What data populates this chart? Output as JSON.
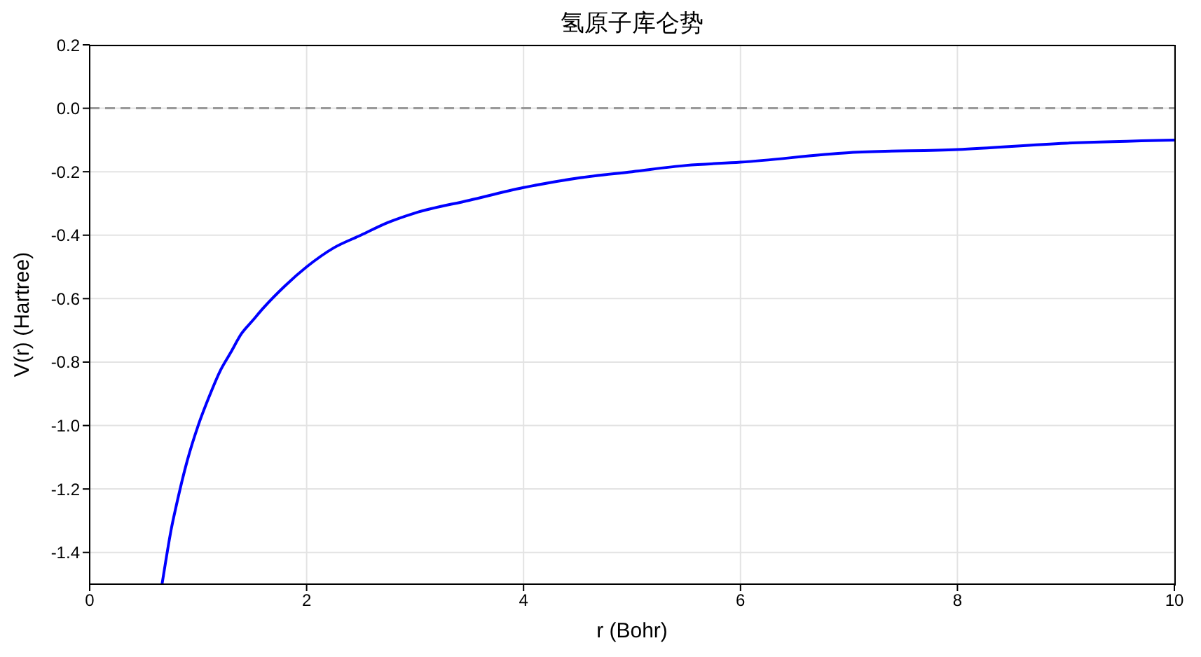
{
  "chart_data": {
    "type": "line",
    "title": "氢原子库仑势",
    "xlabel": "r (Bohr)",
    "ylabel": "V(r) (Hartree)",
    "x": [
      0.667,
      0.7,
      0.75,
      0.8,
      0.9,
      1.0,
      1.1,
      1.2,
      1.3,
      1.4,
      1.5,
      1.6,
      1.8,
      2.0,
      2.25,
      2.5,
      2.75,
      3.0,
      3.5,
      4.0,
      4.5,
      5.0,
      5.5,
      6.0,
      7.0,
      8.0,
      9.0,
      10.0
    ],
    "series": [
      {
        "color": "#0000ff",
        "values": [
          -1.5,
          -1.43,
          -1.33,
          -1.25,
          -1.11,
          -1.0,
          -0.91,
          -0.83,
          -0.77,
          -0.71,
          -0.67,
          -0.63,
          -0.56,
          -0.5,
          -0.44,
          -0.4,
          -0.36,
          -0.33,
          -0.29,
          -0.25,
          -0.22,
          -0.2,
          -0.18,
          -0.17,
          -0.14,
          -0.13,
          -0.11,
          -0.1
        ]
      }
    ],
    "xlim": [
      0,
      10
    ],
    "xticks": [
      0,
      2,
      4,
      6,
      8,
      10
    ],
    "ylim": [
      -1.5,
      0.2
    ],
    "yticks": [
      -1.4,
      -1.2,
      {
        "value": -1,
        "label": "-1.0"
      },
      -0.8,
      -0.6,
      -0.4,
      -0.2,
      {
        "value": 0,
        "label": "0.0"
      },
      0.2
    ],
    "ref_lines": [
      {
        "axis": "y",
        "value": 0,
        "color": "#999999",
        "line_style": "dashed"
      }
    ],
    "grid": true,
    "line_style": "solid"
  }
}
